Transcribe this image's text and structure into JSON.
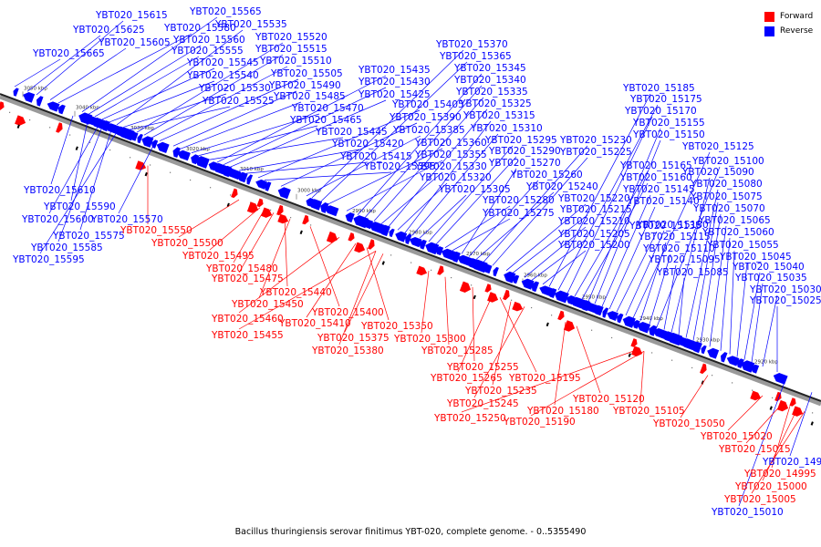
{
  "legend": {
    "forward_label": "Forward",
    "reverse_label": "Reverse",
    "forward_color": "#ff0000",
    "reverse_color": "#0000ff"
  },
  "caption": "Bacillus thuringiensis serovar finitimus YBT-020, complete genome. - 0..5355490",
  "tick_labels": [
    "3050 kbp",
    "3040 kbp",
    "3030 kbp",
    "3020 kbp",
    "3010 kbp",
    "3000 kbp",
    "2990 kbp",
    "2980 kbp",
    "2970 kbp",
    "2960 kbp",
    "2950 kbp",
    "2940 kbp",
    "2930 kbp",
    "2920 kbp"
  ],
  "reverse_labels_top": [
    "YBT020_15665",
    "YBT020_15625",
    "YBT020_15615",
    "YBT020_15605",
    "YBT020_15580",
    "YBT020_15565",
    "YBT020_15560",
    "YBT020_15555",
    "YBT020_15545",
    "YBT020_15540",
    "YBT020_15535",
    "YBT020_15530",
    "YBT020_15525",
    "YBT020_15520",
    "YBT020_15515",
    "YBT020_15510",
    "YBT020_15505",
    "YBT020_15490",
    "YBT020_15485",
    "YBT020_15470",
    "YBT020_15465",
    "YBT020_15445",
    "YBT020_15435",
    "YBT020_15430",
    "YBT020_15425",
    "YBT020_15420",
    "YBT020_15415",
    "YBT020_15405",
    "YBT020_15395",
    "YBT020_15390",
    "YBT020_15385",
    "YBT020_15370",
    "YBT020_15365",
    "YBT020_15360",
    "YBT020_15355",
    "YBT020_15345",
    "YBT020_15340",
    "YBT020_15335",
    "YBT020_15330",
    "YBT020_15325",
    "YBT020_15320",
    "YBT020_15315",
    "YBT020_15310",
    "YBT020_15305",
    "YBT020_15295",
    "YBT020_15290",
    "YBT020_15280",
    "YBT020_15275",
    "YBT020_15270",
    "YBT020_15260",
    "YBT020_15240",
    "YBT020_15230",
    "YBT020_15225",
    "YBT020_15220",
    "YBT020_15215",
    "YBT020_15210",
    "YBT020_15205",
    "YBT020_15200",
    "YBT020_15185",
    "YBT020_15175",
    "YBT020_15170",
    "YBT020_15165",
    "YBT020_15160",
    "YBT020_15155",
    "YBT020_15150",
    "YBT020_15145",
    "YBT020_15140",
    "YBT020_15135",
    "YBT020_15130",
    "YBT020_15125",
    "YBT020_15115",
    "YBT020_15110",
    "YBT020_15100",
    "YBT020_15095",
    "YBT020_15090",
    "YBT020_15085",
    "YBT020_15080",
    "YBT020_15075",
    "YBT020_15070",
    "YBT020_15065",
    "YBT020_15060",
    "YBT020_15055",
    "YBT020_15045",
    "YBT020_15040",
    "YBT020_15035",
    "YBT020_15030",
    "YBT020_15025"
  ],
  "reverse_labels_bottom": [
    "YBT020_15610",
    "YBT020_15590",
    "YBT020_15600",
    "YBT020_15570",
    "YBT020_15575",
    "YBT020_15585",
    "YBT020_15595",
    "YBT020_14990",
    "YBT020_15010"
  ],
  "forward_labels": [
    "YBT020_15550",
    "YBT020_15500",
    "YBT020_15495",
    "YBT020_15480",
    "YBT020_15475",
    "YBT020_15440",
    "YBT020_15450",
    "YBT020_15400",
    "YBT020_15460",
    "YBT020_15410",
    "YBT020_15350",
    "YBT020_15455",
    "YBT020_15375",
    "YBT020_15380",
    "YBT020_15300",
    "YBT020_15285",
    "YBT020_15255",
    "YBT020_15265",
    "YBT020_15195",
    "YBT020_15235",
    "YBT020_15245",
    "YBT020_15180",
    "YBT020_15120",
    "YBT020_15250",
    "YBT020_15190",
    "YBT020_15105",
    "YBT020_15050",
    "YBT020_15020",
    "YBT020_15015",
    "YBT020_14995",
    "YBT020_15000",
    "YBT020_15005"
  ]
}
